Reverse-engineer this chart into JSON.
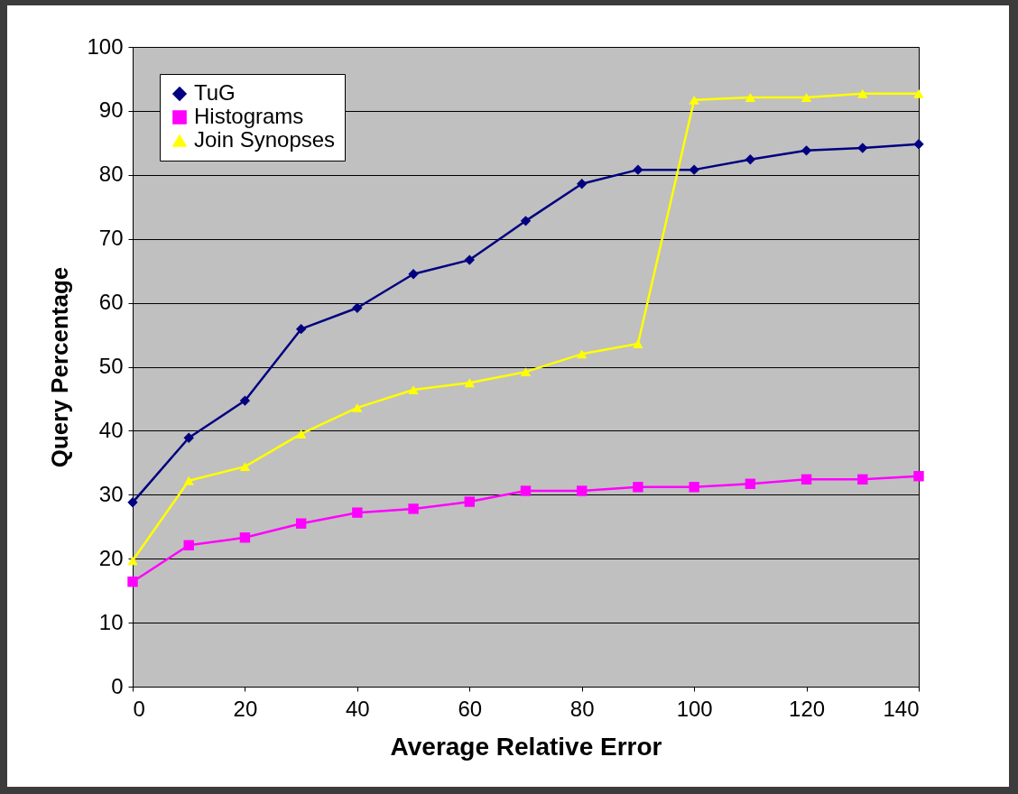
{
  "chart_data": {
    "type": "line",
    "xlabel": "Average Relative Error",
    "ylabel": "Query Percentage",
    "x": [
      0,
      10,
      20,
      30,
      40,
      50,
      60,
      70,
      80,
      90,
      100,
      110,
      120,
      130,
      140
    ],
    "series": [
      {
        "name": "TuG",
        "color": "#000080",
        "marker": "diamond",
        "values": [
          28.8,
          38.9,
          44.7,
          55.9,
          59.2,
          64.5,
          66.7,
          72.8,
          78.6,
          80.8,
          80.8,
          82.4,
          83.8,
          84.2,
          84.8
        ]
      },
      {
        "name": "Histograms",
        "color": "#ff00ff",
        "marker": "square",
        "values": [
          16.4,
          22.1,
          23.3,
          25.5,
          27.2,
          27.8,
          28.9,
          30.6,
          30.6,
          31.2,
          31.2,
          31.7,
          32.4,
          32.4,
          32.9
        ]
      },
      {
        "name": "Join Synopses",
        "color": "#ffff00",
        "marker": "triangle",
        "values": [
          19.7,
          32.2,
          34.4,
          39.5,
          43.6,
          46.4,
          47.5,
          49.2,
          52.0,
          53.6,
          91.7,
          92.1,
          92.1,
          92.7,
          92.7
        ]
      }
    ],
    "xlim": [
      0,
      140
    ],
    "xticks": [
      0,
      20,
      40,
      60,
      80,
      100,
      120,
      140
    ],
    "ylim": [
      0,
      100
    ],
    "yticks": [
      0,
      10,
      20,
      30,
      40,
      50,
      60,
      70,
      80,
      90,
      100
    ],
    "grid": "y",
    "legend": "top left",
    "line_style": "solid"
  }
}
